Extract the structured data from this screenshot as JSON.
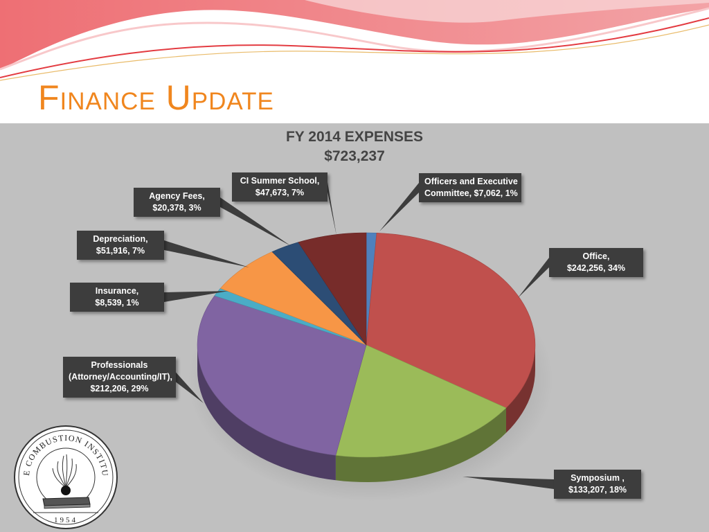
{
  "slide": {
    "title": "Finance Update"
  },
  "chart_data": {
    "type": "pie",
    "title": "FY 2014 EXPENSES",
    "subtitle": "$723,237",
    "slices": [
      {
        "name": "Officers and Executive Committee",
        "label_lines": [
          "Officers and Executive",
          "Committee, $7,062, 1%"
        ],
        "value": 7062,
        "percent": 1,
        "color": "#4f81bd"
      },
      {
        "name": "Office",
        "label_lines": [
          "Office,",
          "$242,256, 34%"
        ],
        "value": 242256,
        "percent": 34,
        "color": "#c0504d"
      },
      {
        "name": "Symposium",
        "label_lines": [
          "Symposium ,",
          "$133,207, 18%"
        ],
        "value": 133207,
        "percent": 18,
        "color": "#9bbb59"
      },
      {
        "name": "Professionals (Attorney/Accounting/IT)",
        "label_lines": [
          "Professionals",
          "(Attorney/Accounting/IT),",
          "$212,206, 29%"
        ],
        "value": 212206,
        "percent": 29,
        "color": "#8064a2"
      },
      {
        "name": "Insurance",
        "label_lines": [
          "Insurance,",
          "$8,539, 1%"
        ],
        "value": 8539,
        "percent": 1,
        "color": "#4bacc6"
      },
      {
        "name": "Depreciation",
        "label_lines": [
          "Depreciation,",
          "$51,916, 7%"
        ],
        "value": 51916,
        "percent": 7,
        "color": "#f79646"
      },
      {
        "name": "Agency Fees",
        "label_lines": [
          "Agency Fees,",
          "$20,378, 3%"
        ],
        "value": 20378,
        "percent": 3,
        "color": "#2c4d75"
      },
      {
        "name": "CI Summer School",
        "label_lines": [
          "CI Summer School,",
          "$47,673, 7%"
        ],
        "value": 47673,
        "percent": 7,
        "color": "#772c2a"
      }
    ]
  },
  "logo": {
    "arc_text": "THE COMBUSTION INSTITUTE",
    "year": "1954"
  }
}
